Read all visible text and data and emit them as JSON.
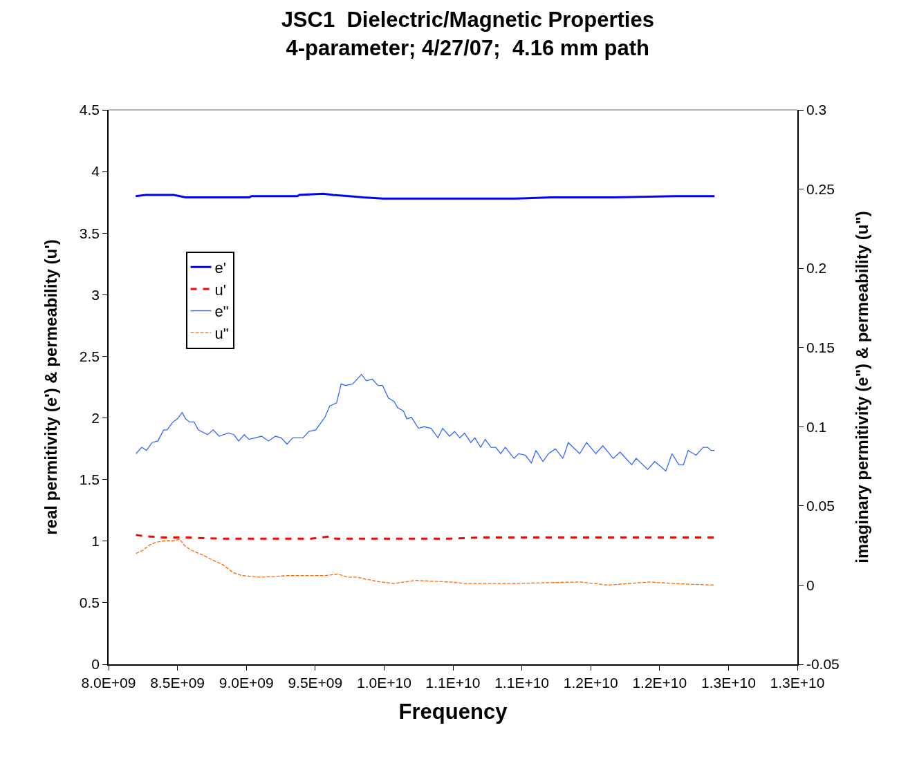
{
  "chart_data": {
    "type": "line",
    "title": "JSC1  Dielectric/Magnetic Properties\n4-parameter; 4/27/07;  4.16 mm path",
    "xlabel": "Frequency",
    "ylabel": "real permitivity (e') & permeability (u')",
    "y2label": "imaginary permitivity (e\") & permeability (u\")",
    "xlim": [
      8000000000.0,
      13000000000.0
    ],
    "xticks": [
      {
        "value": 8000000000.0,
        "label": "8.0E+09"
      },
      {
        "value": 8500000000.0,
        "label": "8.5E+09"
      },
      {
        "value": 9000000000.0,
        "label": "9.0E+09"
      },
      {
        "value": 9500000000.0,
        "label": "9.5E+09"
      },
      {
        "value": 10000000000.0,
        "label": "1.0E+10"
      },
      {
        "value": 10500000000.0,
        "label": "1.1E+10"
      },
      {
        "value": 11000000000.0,
        "label": "1.1E+10"
      },
      {
        "value": 11500000000.0,
        "label": "1.2E+10"
      },
      {
        "value": 12000000000.0,
        "label": "1.2E+10"
      },
      {
        "value": 12500000000.0,
        "label": "1.3E+10"
      },
      {
        "value": 13000000000.0,
        "label": "1.3E+10"
      }
    ],
    "ylim": [
      0,
      4.5
    ],
    "yticks": [
      0,
      0.5,
      1,
      1.5,
      2,
      2.5,
      3,
      3.5,
      4,
      4.5
    ],
    "y2lim": [
      -0.05,
      0.3
    ],
    "y2ticks": [
      -0.05,
      0,
      0.05,
      0.1,
      0.15,
      0.2,
      0.25,
      0.3
    ],
    "grid": false,
    "legend": "top left",
    "marker": "none",
    "series": [
      {
        "name": "e'",
        "color": "#0000ff",
        "line_style": "solid",
        "x": [
          8197000000.0,
          8269000000.0,
          8472000000.0,
          8559000000.0,
          9022000000.0,
          9037000000.0,
          9370000000.0,
          9384000000.0,
          9558000000.0,
          9630000000.0,
          9746000000.0,
          9848000000.0,
          9992000000.0,
          10514000000.0,
          10630000000.0,
          10948000000.0,
          11209000000.0,
          11673000000.0,
          12107000000.0,
          12399000000.0
        ],
        "values": [
          3.8,
          3.81,
          3.81,
          3.79,
          3.79,
          3.8,
          3.8,
          3.81,
          3.82,
          3.81,
          3.8,
          3.79,
          3.78,
          3.78,
          3.78,
          3.78,
          3.79,
          3.79,
          3.8,
          3.8
        ]
      },
      {
        "name": "u'",
        "color": "#ff0000",
        "line_style": "dashed",
        "x": [
          8199000000.0,
          8258000000.0,
          8400000000.0,
          8542000000.0,
          8802000000.0,
          9471000000.0,
          9621000000.0,
          9646000000.0,
          10475000000.0,
          10726000000.0,
          11427000000.0,
          12399000000.0
        ],
        "values": [
          1.05,
          1.04,
          1.03,
          1.03,
          1.02,
          1.02,
          1.04,
          1.02,
          1.02,
          1.03,
          1.03,
          1.03
        ]
      },
      {
        "name": "e\"",
        "color": "#3366ff",
        "line_style": "solid",
        "axis": "y2",
        "x": [
          8199000000.0,
          8241000000.0,
          8275000000.0,
          8316000000.0,
          8358000000.0,
          8400000000.0,
          8425000000.0,
          8467000000.0,
          8500000000.0,
          8534000000.0,
          8559000000.0,
          8587000000.0,
          8621000000.0,
          8651000000.0,
          8718000000.0,
          8760000000.0,
          8802000000.0,
          8868000000.0,
          8910000000.0,
          8944000000.0,
          8985000000.0,
          9019000000.0,
          9111000000.0,
          9161000000.0,
          9211000000.0,
          9253000000.0,
          9295000000.0,
          9337000000.0,
          9412000000.0,
          9454000000.0,
          9504000000.0,
          9571000000.0,
          9605000000.0,
          9655000000.0,
          9688000000.0,
          9722000000.0,
          9772000000.0,
          9836000000.0,
          9872000000.0,
          9914000000.0,
          9956000000.0,
          9989000000.0,
          10032000000.0,
          10073000000.0,
          10098000000.0,
          10140000000.0,
          10165000000.0,
          10199000000.0,
          10249000000.0,
          10291000000.0,
          10341000000.0,
          10391000000.0,
          10425000000.0,
          10475000000.0,
          10512000000.0,
          10550000000.0,
          10584000000.0,
          10629000000.0,
          10659000000.0,
          10701000000.0,
          10734000000.0,
          10776000000.0,
          10810000000.0,
          10846000000.0,
          10880000000.0,
          10943000000.0,
          10977000000.0,
          11027000000.0,
          11069000000.0,
          11102000000.0,
          11153000000.0,
          11194000000.0,
          11244000000.0,
          11298000000.0,
          11337000000.0,
          11420000000.0,
          11470000000.0,
          11537000000.0,
          11588000000.0,
          11663000000.0,
          11713000000.0,
          11797000000.0,
          11830000000.0,
          11914000000.0,
          11964000000.0,
          12006000000.0,
          12045000000.0,
          12090000000.0,
          12140000000.0,
          12173000000.0,
          12207000000.0,
          12265000000.0,
          12316000000.0,
          12349000000.0,
          12374000000.0,
          12399000000.0
        ],
        "values": [
          0.083,
          0.087,
          0.085,
          0.09,
          0.091,
          0.098,
          0.098,
          0.103,
          0.105,
          0.109,
          0.105,
          0.103,
          0.103,
          0.098,
          0.095,
          0.098,
          0.094,
          0.096,
          0.095,
          0.091,
          0.095,
          0.092,
          0.094,
          0.091,
          0.094,
          0.093,
          0.089,
          0.093,
          0.093,
          0.097,
          0.098,
          0.106,
          0.113,
          0.115,
          0.127,
          0.126,
          0.127,
          0.133,
          0.129,
          0.13,
          0.126,
          0.126,
          0.118,
          0.116,
          0.112,
          0.11,
          0.105,
          0.106,
          0.099,
          0.1,
          0.099,
          0.093,
          0.099,
          0.094,
          0.097,
          0.093,
          0.096,
          0.09,
          0.093,
          0.087,
          0.092,
          0.087,
          0.087,
          0.083,
          0.087,
          0.08,
          0.083,
          0.082,
          0.077,
          0.085,
          0.078,
          0.083,
          0.086,
          0.08,
          0.09,
          0.083,
          0.09,
          0.083,
          0.088,
          0.08,
          0.084,
          0.076,
          0.08,
          0.073,
          0.078,
          0.075,
          0.072,
          0.083,
          0.076,
          0.076,
          0.085,
          0.082,
          0.087,
          0.087,
          0.085,
          0.085
        ]
      },
      {
        "name": "u\"",
        "color": "#ff6600",
        "line_style": "dashed",
        "axis": "y2",
        "x": [
          8199000000.0,
          8249000000.0,
          8291000000.0,
          8341000000.0,
          8408000000.0,
          8475000000.0,
          8517000000.0,
          8551000000.0,
          8601000000.0,
          8684000000.0,
          8777000000.0,
          8827000000.0,
          8902000000.0,
          8969000000.0,
          9103000000.0,
          9304000000.0,
          9571000000.0,
          9663000000.0,
          9738000000.0,
          9806000000.0,
          9856000000.0,
          9973000000.0,
          10073000000.0,
          10224000000.0,
          10475000000.0,
          10592000000.0,
          10927000000.0,
          11427000000.0,
          11621000000.0,
          11931000000.0,
          12098000000.0,
          12399000000.0
        ],
        "values": [
          0.02,
          0.022,
          0.025,
          0.027,
          0.028,
          0.028,
          0.029,
          0.025,
          0.022,
          0.019,
          0.015,
          0.013,
          0.008,
          0.006,
          0.005,
          0.006,
          0.006,
          0.007,
          0.005,
          0.005,
          0.004,
          0.002,
          0.001,
          0.003,
          0.002,
          0.001,
          0.001,
          0.002,
          0.0,
          0.002,
          0.001,
          0.0
        ]
      }
    ]
  }
}
